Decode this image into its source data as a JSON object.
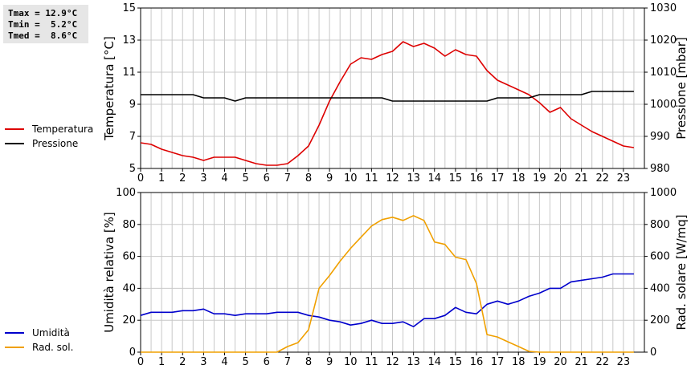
{
  "stats": {
    "tmax": "Tmax = 12.9°C",
    "tmin": "Tmin =  5.2°C",
    "tmed": "Tmed =  8.6°C"
  },
  "colors": {
    "temperature": "#dd0000",
    "pressure": "#000000",
    "humidity": "#0000cc",
    "solar": "#f0a000",
    "grid": "#c8c8c8"
  },
  "chart_data": [
    {
      "type": "line",
      "ylabel_left": "Temperatura [°C]",
      "ylabel_right": "Pressione [mbar]",
      "xlim": [
        0,
        24
      ],
      "xticks": [
        0,
        1,
        2,
        3,
        4,
        5,
        6,
        7,
        8,
        9,
        10,
        11,
        12,
        13,
        14,
        15,
        16,
        17,
        18,
        19,
        20,
        21,
        22,
        23
      ],
      "ylim_left": [
        5,
        15
      ],
      "yticks_left": [
        5,
        7,
        9,
        11,
        13,
        15
      ],
      "ylim_right": [
        980,
        1030
      ],
      "yticks_right": [
        980,
        990,
        1000,
        1010,
        1020,
        1030
      ],
      "grid": true,
      "series": [
        {
          "name": "Temperatura",
          "axis": "left",
          "color": "#dd0000",
          "x": [
            0,
            0.5,
            1,
            1.5,
            2,
            2.5,
            3,
            3.5,
            4,
            4.5,
            5,
            5.5,
            6,
            6.5,
            7,
            7.5,
            8,
            8.5,
            9,
            9.5,
            10,
            10.5,
            11,
            11.5,
            12,
            12.5,
            13,
            13.5,
            14,
            14.5,
            15,
            15.5,
            16,
            16.5,
            17,
            17.5,
            18,
            18.5,
            19,
            19.5,
            20,
            20.5,
            21,
            21.5,
            22,
            22.5,
            23,
            23.5
          ],
          "y": [
            6.6,
            6.5,
            6.2,
            6.0,
            5.8,
            5.7,
            5.5,
            5.7,
            5.7,
            5.7,
            5.5,
            5.3,
            5.2,
            5.2,
            5.3,
            5.8,
            6.4,
            7.7,
            9.2,
            10.4,
            11.5,
            11.9,
            11.8,
            12.1,
            12.3,
            12.9,
            12.6,
            12.8,
            12.5,
            12.0,
            12.4,
            12.1,
            12.0,
            11.1,
            10.5,
            10.2,
            9.9,
            9.6,
            9.1,
            8.5,
            8.8,
            8.1,
            7.7,
            7.3,
            7.0,
            6.7,
            6.4,
            6.3
          ]
        },
        {
          "name": "Pressione",
          "axis": "right",
          "color": "#000000",
          "x": [
            0,
            0.5,
            1,
            1.5,
            2,
            2.5,
            3,
            3.5,
            4,
            4.5,
            5,
            5.5,
            6,
            6.5,
            7,
            7.5,
            8,
            8.5,
            9,
            9.5,
            10,
            10.5,
            11,
            11.5,
            12,
            12.5,
            13,
            13.5,
            14,
            14.5,
            15,
            15.5,
            16,
            16.5,
            17,
            17.5,
            18,
            18.5,
            19,
            19.5,
            20,
            20.5,
            21,
            21.5,
            22,
            22.5,
            23,
            23.5
          ],
          "y": [
            1003,
            1003,
            1003,
            1003,
            1003,
            1003,
            1002,
            1002,
            1002,
            1001,
            1002,
            1002,
            1002,
            1002,
            1002,
            1002,
            1002,
            1002,
            1002,
            1002,
            1002,
            1002,
            1002,
            1002,
            1001,
            1001,
            1001,
            1001,
            1001,
            1001,
            1001,
            1001,
            1001,
            1001,
            1002,
            1002,
            1002,
            1002,
            1003,
            1003,
            1003,
            1003,
            1003,
            1004,
            1004,
            1004,
            1004,
            1004
          ]
        }
      ]
    },
    {
      "type": "line",
      "ylabel_left": "Umidità relativa [%]",
      "ylabel_right": "Rad. solare [W/mq]",
      "xlim": [
        0,
        24
      ],
      "xticks": [
        0,
        1,
        2,
        3,
        4,
        5,
        6,
        7,
        8,
        9,
        10,
        11,
        12,
        13,
        14,
        15,
        16,
        17,
        18,
        19,
        20,
        21,
        22,
        23
      ],
      "ylim_left": [
        0,
        100
      ],
      "yticks_left": [
        0,
        20,
        40,
        60,
        80,
        100
      ],
      "ylim_right": [
        0,
        1000
      ],
      "yticks_right": [
        0,
        200,
        400,
        600,
        800,
        1000
      ],
      "grid": true,
      "series": [
        {
          "name": "Umidità",
          "axis": "left",
          "color": "#0000cc",
          "x": [
            0,
            0.5,
            1,
            1.5,
            2,
            2.5,
            3,
            3.5,
            4,
            4.5,
            5,
            5.5,
            6,
            6.5,
            7,
            7.5,
            8,
            8.5,
            9,
            9.5,
            10,
            10.5,
            11,
            11.5,
            12,
            12.5,
            13,
            13.5,
            14,
            14.5,
            15,
            15.5,
            16,
            16.5,
            17,
            17.5,
            18,
            18.5,
            19,
            19.5,
            20,
            20.5,
            21,
            21.5,
            22,
            22.5,
            23,
            23.5
          ],
          "y": [
            23,
            25,
            25,
            25,
            26,
            26,
            27,
            24,
            24,
            23,
            24,
            24,
            24,
            25,
            25,
            25,
            23,
            22,
            20,
            19,
            17,
            18,
            20,
            18,
            18,
            19,
            16,
            21,
            21,
            23,
            28,
            25,
            24,
            30,
            32,
            30,
            32,
            35,
            37,
            40,
            40,
            44,
            45,
            46,
            47,
            49,
            49,
            49
          ]
        },
        {
          "name": "Rad. sol.",
          "axis": "right",
          "color": "#f0a000",
          "x": [
            0,
            0.5,
            1,
            1.5,
            2,
            2.5,
            3,
            3.5,
            4,
            4.5,
            5,
            5.5,
            6,
            6.5,
            7,
            7.5,
            8,
            8.5,
            9,
            9.5,
            10,
            10.5,
            11,
            11.5,
            12,
            12.5,
            13,
            13.5,
            14,
            14.5,
            15,
            15.5,
            16,
            16.5,
            17,
            17.5,
            18,
            18.5,
            19,
            19.5,
            20,
            20.5,
            21,
            21.5,
            22,
            22.5,
            23,
            23.5
          ],
          "y": [
            0,
            0,
            0,
            0,
            0,
            0,
            0,
            0,
            0,
            0,
            0,
            0,
            0,
            0,
            35,
            60,
            140,
            400,
            480,
            570,
            650,
            720,
            790,
            830,
            845,
            825,
            855,
            825,
            690,
            675,
            595,
            580,
            430,
            110,
            95,
            65,
            35,
            5,
            0,
            0,
            0,
            0,
            0,
            0,
            0,
            0,
            0,
            0
          ]
        }
      ]
    }
  ],
  "legend": {
    "top": [
      {
        "label": "Temperatura",
        "color": "#dd0000"
      },
      {
        "label": "Pressione",
        "color": "#000000"
      }
    ],
    "bottom": [
      {
        "label": "Umidità",
        "color": "#0000cc"
      },
      {
        "label": "Rad. sol.",
        "color": "#f0a000"
      }
    ]
  }
}
